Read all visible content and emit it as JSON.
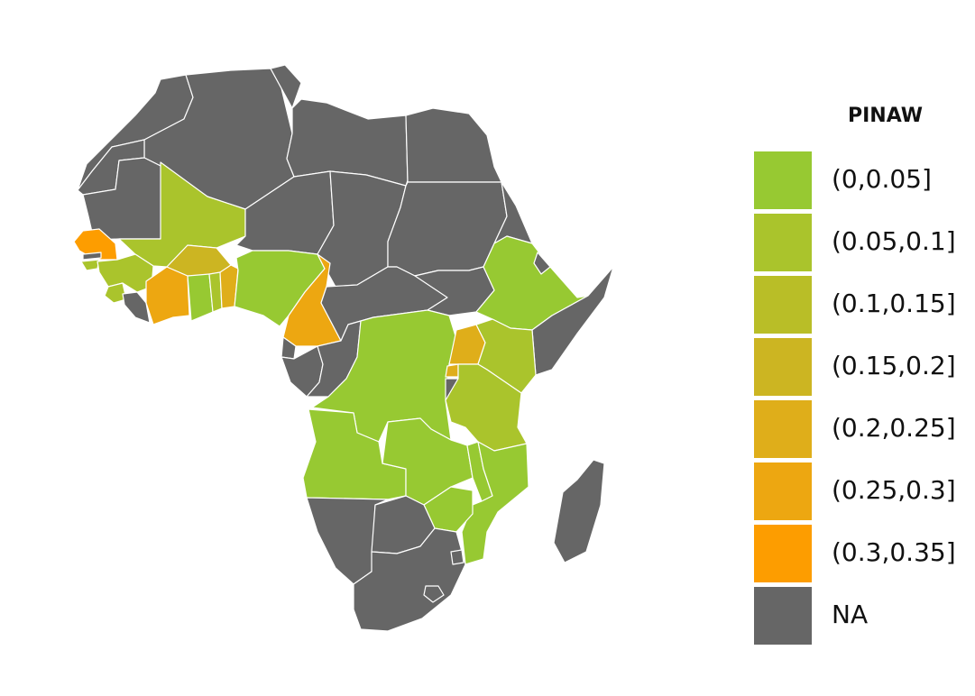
{
  "legend": {
    "title": "PINAW",
    "items": [
      {
        "label": "(0,0.05]",
        "color": "#97c932"
      },
      {
        "label": "(0.05,0.1]",
        "color": "#aac42c"
      },
      {
        "label": "(0.1,0.15]",
        "color": "#b9be27"
      },
      {
        "label": "(0.15,0.2]",
        "color": "#ccb522"
      },
      {
        "label": "(0.2,0.25]",
        "color": "#dfae1a"
      },
      {
        "label": "(0.25,0.3]",
        "color": "#eda711"
      },
      {
        "label": "(0.3,0.35]",
        "color": "#fd9d00"
      },
      {
        "label": "NA",
        "color": "#666666"
      }
    ]
  },
  "regions": [
    {
      "name": "morocco",
      "class": "NA"
    },
    {
      "name": "algeria",
      "class": "NA"
    },
    {
      "name": "tunisia",
      "class": "NA"
    },
    {
      "name": "libya",
      "class": "NA"
    },
    {
      "name": "egypt",
      "class": "NA"
    },
    {
      "name": "western-sahara",
      "class": "NA"
    },
    {
      "name": "mauritania",
      "class": "NA"
    },
    {
      "name": "mali",
      "class": "(0.05,0.1]"
    },
    {
      "name": "niger",
      "class": "NA"
    },
    {
      "name": "chad",
      "class": "NA"
    },
    {
      "name": "sudan",
      "class": "NA"
    },
    {
      "name": "south-sudan",
      "class": "NA"
    },
    {
      "name": "eritrea",
      "class": "NA"
    },
    {
      "name": "senegal",
      "class": "(0.3,0.35]"
    },
    {
      "name": "gambia",
      "class": "NA"
    },
    {
      "name": "guinea-bissau",
      "class": "(0.05,0.1]"
    },
    {
      "name": "guinea",
      "class": "(0.05,0.1]"
    },
    {
      "name": "sierra-leone",
      "class": "(0.05,0.1]"
    },
    {
      "name": "liberia",
      "class": "NA"
    },
    {
      "name": "cote-divoire",
      "class": "(0.25,0.3]"
    },
    {
      "name": "burkina-faso",
      "class": "(0.15,0.2]"
    },
    {
      "name": "ghana",
      "class": "(0,0.05]"
    },
    {
      "name": "togo",
      "class": "(0.05,0.1]"
    },
    {
      "name": "benin",
      "class": "(0.2,0.25]"
    },
    {
      "name": "nigeria",
      "class": "(0,0.05]"
    },
    {
      "name": "cameroon",
      "class": "(0.25,0.3]"
    },
    {
      "name": "central-african-republic",
      "class": "NA"
    },
    {
      "name": "ethiopia",
      "class": "(0,0.05]"
    },
    {
      "name": "djibouti",
      "class": "NA"
    },
    {
      "name": "somalia",
      "class": "NA"
    },
    {
      "name": "equatorial-guinea",
      "class": "NA"
    },
    {
      "name": "gabon",
      "class": "NA"
    },
    {
      "name": "congo",
      "class": "NA"
    },
    {
      "name": "dr-congo",
      "class": "(0,0.05]"
    },
    {
      "name": "uganda",
      "class": "(0.2,0.25]"
    },
    {
      "name": "kenya",
      "class": "(0.05,0.1]"
    },
    {
      "name": "rwanda",
      "class": "(0.2,0.25]"
    },
    {
      "name": "burundi",
      "class": "NA"
    },
    {
      "name": "tanzania",
      "class": "(0.05,0.1]"
    },
    {
      "name": "angola",
      "class": "(0,0.05]"
    },
    {
      "name": "zambia",
      "class": "(0,0.05]"
    },
    {
      "name": "malawi",
      "class": "(0,0.05]"
    },
    {
      "name": "mozambique",
      "class": "(0,0.05]"
    },
    {
      "name": "zimbabwe",
      "class": "(0,0.05]"
    },
    {
      "name": "namibia",
      "class": "NA"
    },
    {
      "name": "botswana",
      "class": "NA"
    },
    {
      "name": "south-africa",
      "class": "NA"
    },
    {
      "name": "lesotho",
      "class": "NA"
    },
    {
      "name": "eswatini",
      "class": "NA"
    },
    {
      "name": "madagascar",
      "class": "NA"
    }
  ]
}
